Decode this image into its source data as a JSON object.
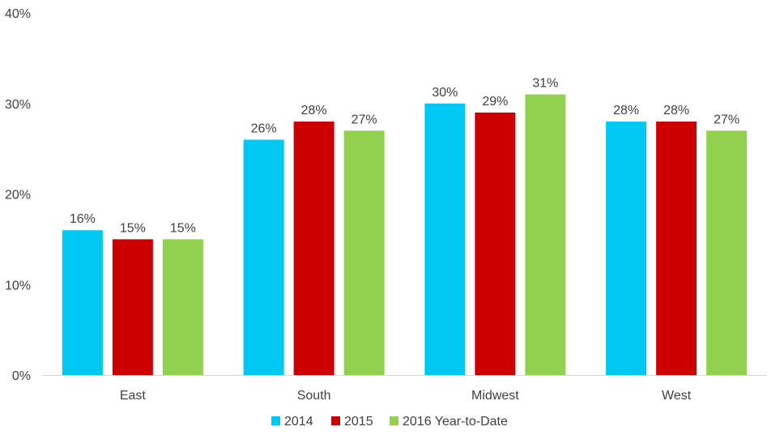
{
  "chart_data": {
    "type": "bar",
    "categories": [
      "East",
      "South",
      "Midwest",
      "West"
    ],
    "series": [
      {
        "name": "2014",
        "color": "#00C8F5",
        "values": [
          16,
          26,
          30,
          28
        ]
      },
      {
        "name": "2015",
        "color": "#CC0000",
        "values": [
          15,
          28,
          29,
          28
        ]
      },
      {
        "name": "2016 Year-to-Date",
        "color": "#92D050",
        "values": [
          15,
          27,
          31,
          27
        ]
      }
    ],
    "data_labels": [
      [
        "16%",
        "26%",
        "30%",
        "28%"
      ],
      [
        "15%",
        "28%",
        "29%",
        "28%"
      ],
      [
        "15%",
        "27%",
        "31%",
        "27%"
      ]
    ],
    "yticks": [
      "0%",
      "10%",
      "20%",
      "30%",
      "40%"
    ],
    "ylim": [
      0,
      40
    ],
    "grid": false,
    "legend_position": "bottom"
  }
}
